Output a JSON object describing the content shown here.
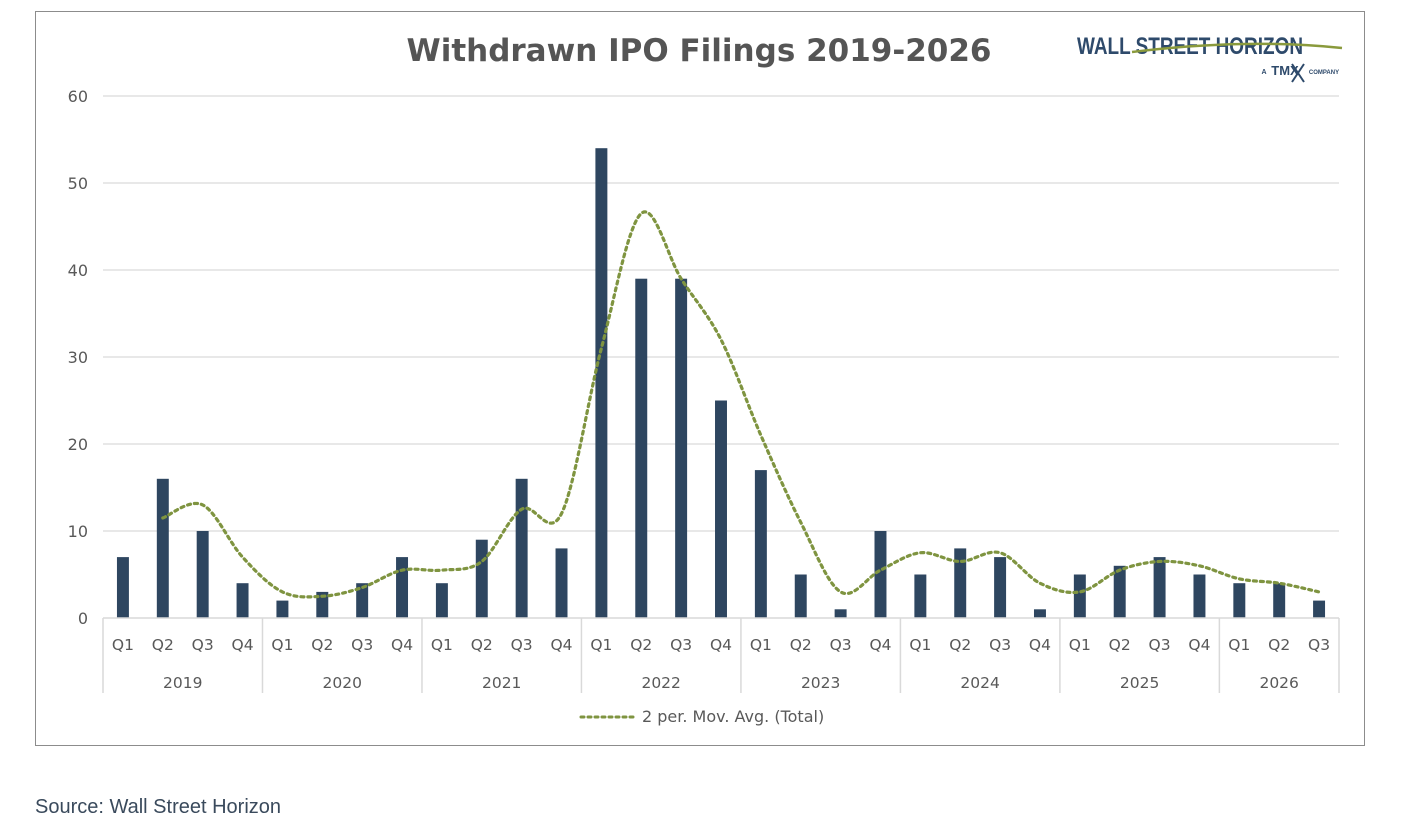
{
  "source_text": "Source: Wall Street Horizon",
  "logo": {
    "brand": "WALL STREET HORIZON",
    "tagline_prefix": "A",
    "tagline_brand": "TMX",
    "tagline_suffix": "COMPANY",
    "brand_color": "#2e4a6b",
    "swoosh_color": "#8a9a3c"
  },
  "colors": {
    "bar": "#2e4660",
    "moving_average": "#7f9440",
    "grid": "#d9d9d9",
    "text": "#595959",
    "title": "#555555"
  },
  "chart_data": {
    "type": "bar",
    "title": "Withdrawn IPO Filings 2019-2026",
    "xlabel": "",
    "ylabel": "",
    "ylim": [
      0,
      60
    ],
    "yticks": [
      0,
      10,
      20,
      30,
      40,
      50,
      60
    ],
    "grid": true,
    "legend_position": "bottom",
    "years": [
      {
        "label": "2019",
        "quarters": [
          "Q1",
          "Q2",
          "Q3",
          "Q4"
        ]
      },
      {
        "label": "2020",
        "quarters": [
          "Q1",
          "Q2",
          "Q3",
          "Q4"
        ]
      },
      {
        "label": "2021",
        "quarters": [
          "Q1",
          "Q2",
          "Q3",
          "Q4"
        ]
      },
      {
        "label": "2022",
        "quarters": [
          "Q1",
          "Q2",
          "Q3",
          "Q4"
        ]
      },
      {
        "label": "2023",
        "quarters": [
          "Q1",
          "Q2",
          "Q3",
          "Q4"
        ]
      },
      {
        "label": "2024",
        "quarters": [
          "Q1",
          "Q2",
          "Q3",
          "Q4"
        ]
      },
      {
        "label": "2025",
        "quarters": [
          "Q1",
          "Q2",
          "Q3",
          "Q4"
        ]
      },
      {
        "label": "2026",
        "quarters": [
          "Q1",
          "Q2",
          "Q3"
        ]
      }
    ],
    "values": [
      7,
      16,
      10,
      4,
      2,
      3,
      4,
      7,
      4,
      9,
      16,
      8,
      54,
      39,
      39,
      25,
      17,
      5,
      1,
      10,
      5,
      8,
      7,
      1,
      5,
      6,
      7,
      5,
      4,
      4,
      2
    ],
    "trendline": {
      "name": "2 per. Mov. Avg. (Total)",
      "period": 2,
      "style": "dotted"
    }
  }
}
